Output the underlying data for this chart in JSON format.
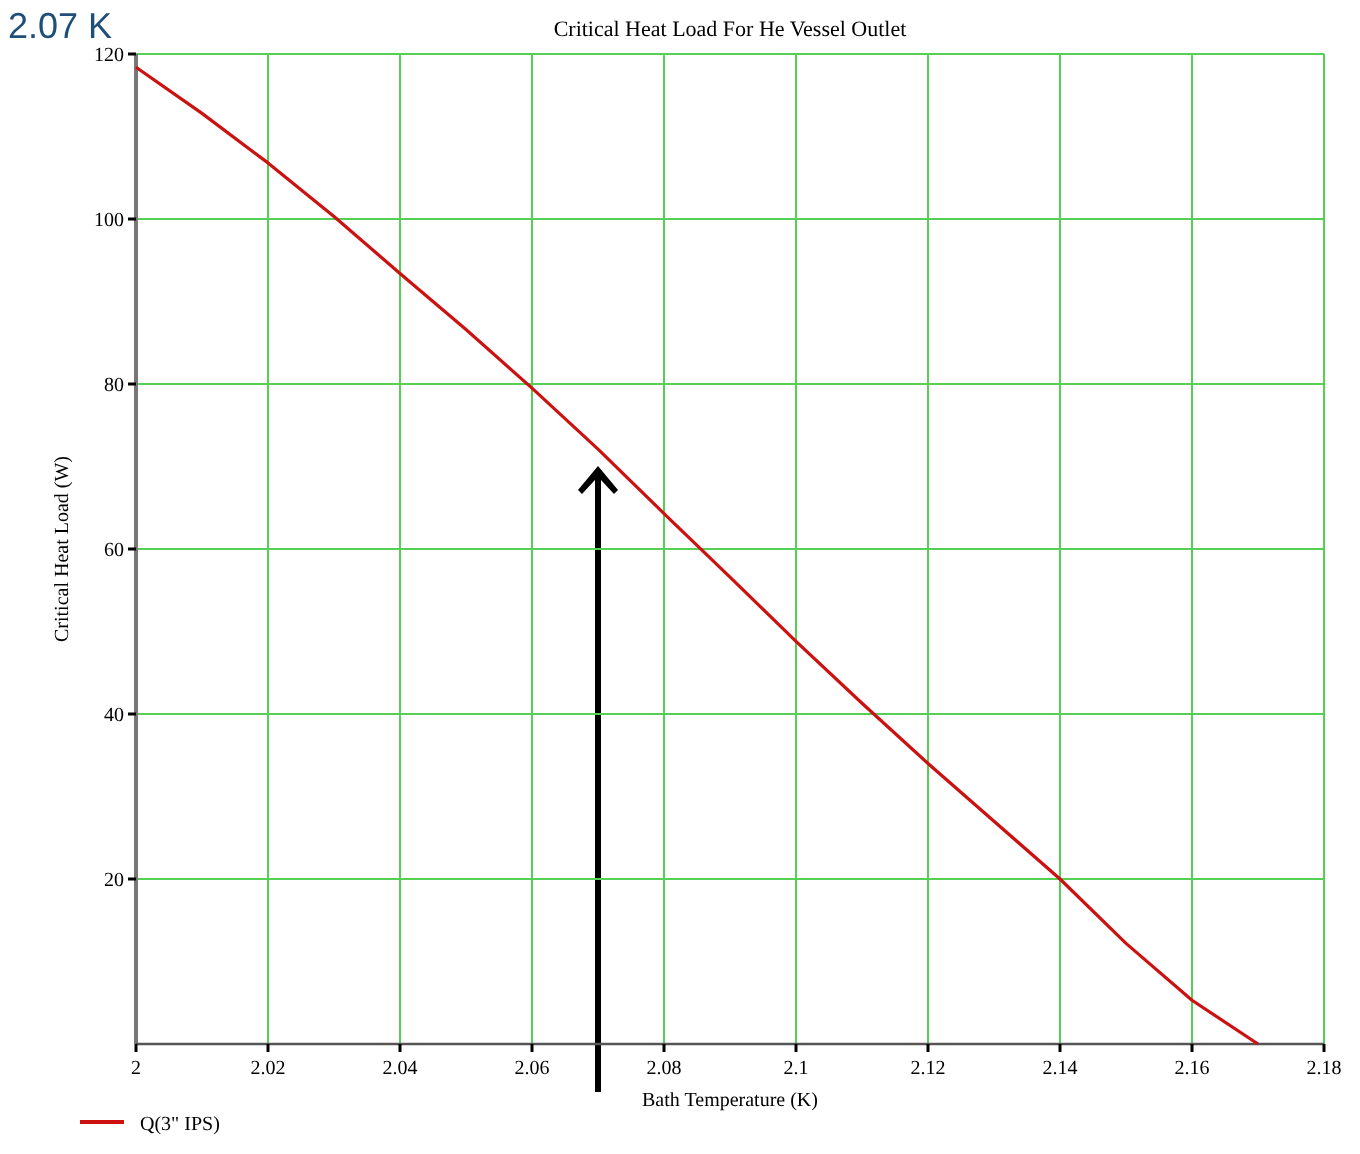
{
  "chart_data": {
    "type": "line",
    "title": "Critical Heat Load For He Vessel Outlet",
    "xlabel": "Bath Temperature (K)",
    "ylabel": "Critical Heat Load (W)",
    "x": [
      2,
      2.01,
      2.02,
      2.03,
      2.04,
      2.05,
      2.06,
      2.07,
      2.08,
      2.09,
      2.1,
      2.11,
      2.12,
      2.13,
      2.14,
      2.15,
      2.16,
      2.17
    ],
    "series": [
      {
        "name": "Q(3\" IPS)",
        "color": "#cc1111",
        "values": [
          118.4,
          112.8,
          106.8,
          100.3,
          93.4,
          86.6,
          79.5,
          72.1,
          64.3,
          56.6,
          48.8,
          41.3,
          34,
          27,
          20,
          12.2,
          5.3,
          0
        ]
      }
    ],
    "xlim": [
      2,
      2.18
    ],
    "xticks": [
      2,
      2.02,
      {
        "value": 2.04,
        "label": "2.04"
      },
      2.06,
      2.08,
      2.1,
      2.12,
      2.14,
      2.16,
      2.18
    ],
    "ylim": [
      0,
      120
    ],
    "yticks": [
      20,
      40,
      60,
      80,
      100,
      120
    ],
    "grid": true,
    "legend": "bottom left",
    "marker": "none",
    "line_style": "solid",
    "annotations": [
      "2.07 K"
    ]
  }
}
